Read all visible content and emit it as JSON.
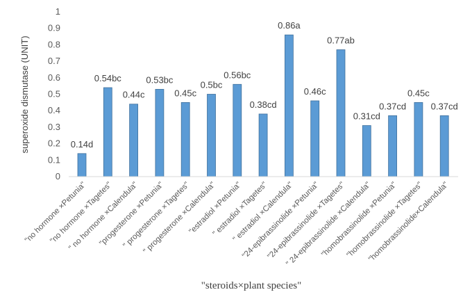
{
  "chart_data": {
    "type": "bar",
    "title": "",
    "xlabel": "\"steroids×plant species\"",
    "ylabel": "superoxide dismutase (UNIT)",
    "ylim": [
      0,
      1
    ],
    "yticks": [
      "0",
      "0.1",
      "0.2",
      "0.3",
      "0.4",
      "0.5",
      "0.6",
      "0.7",
      "0.8",
      "0.9",
      "1"
    ],
    "grid": false,
    "bar_color": "#5B9BD5",
    "categories": [
      "\"no hormone ×Petunia\"",
      "\"no hormone ×Tagetes\"",
      "\" no hormone ×Calendula\"",
      "\"progesterone  ×Petunia\"",
      "\" progesterone ×Tagetes\"",
      "\" progesterone ×Calendula\"",
      "\"estradiol  ×Petunia\"",
      "\" estradiol  ×Tagetes\"",
      "\" estradiol  ×Calendula\"",
      "\"24-epibrassinolide  ×Petunia\"",
      "\"24-epibrassinolide  ×Tagetes\"",
      "\" 24-epibrassinolide  ×Calendula\"",
      "\"homobrassinolide ×Petunia\"",
      "\"homobrassinolide ×Tagetes\"",
      "\"homobrassinolide×Calendula\""
    ],
    "values": [
      0.14,
      0.54,
      0.44,
      0.53,
      0.45,
      0.5,
      0.56,
      0.38,
      0.86,
      0.46,
      0.77,
      0.31,
      0.37,
      0.45,
      0.37
    ],
    "data_labels": [
      "0.14d",
      "0.54bc",
      "0.44c",
      "0.53bc",
      "0.45c",
      "0.5bc",
      "0.56bc",
      "0.38cd",
      "0.86a",
      "0.46c",
      "0.77ab",
      "0.31cd",
      "0.37cd",
      "0.45c",
      "0.37cd"
    ]
  }
}
